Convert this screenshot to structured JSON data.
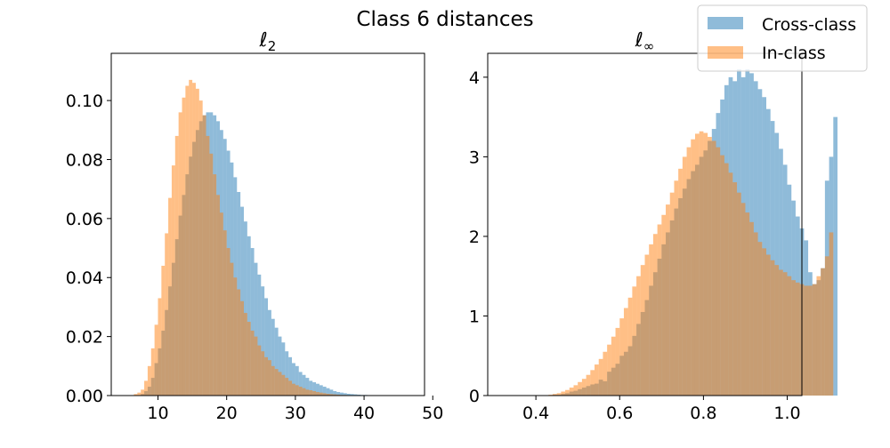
{
  "figure": {
    "suptitle": "Class 6 distances"
  },
  "legend": {
    "placement": "top-right",
    "entries": [
      {
        "label": "Cross-class",
        "color": "#1f77b4",
        "alpha": 0.5
      },
      {
        "label": "In-class",
        "color": "#ff7f0e",
        "alpha": 0.5
      }
    ]
  },
  "chart_data": [
    {
      "type": "histogram",
      "title": "ℓ2",
      "title_main": "ℓ",
      "title_sub": "2",
      "xlabel": "",
      "ylabel": "",
      "xlim": [
        3.2,
        48.8
      ],
      "ylim": [
        0,
        0.116
      ],
      "xticks": [
        10,
        20,
        30,
        40,
        50
      ],
      "xtick_labels": [
        "10",
        "20",
        "30",
        "40",
        "50"
      ],
      "yticks": [
        0.0,
        0.02,
        0.04,
        0.06,
        0.08,
        0.1
      ],
      "ytick_labels": [
        "0.00",
        "0.02",
        "0.04",
        "0.06",
        "0.08",
        "0.10"
      ],
      "bin_width": 0.5,
      "series": [
        {
          "name": "Cross-class",
          "color": "#1f77b4",
          "alpha": 0.5,
          "start": 7.5,
          "values": [
            0.0005,
            0.0015,
            0.003,
            0.006,
            0.011,
            0.016,
            0.022,
            0.029,
            0.037,
            0.045,
            0.053,
            0.061,
            0.068,
            0.075,
            0.081,
            0.086,
            0.09,
            0.093,
            0.095,
            0.096,
            0.096,
            0.095,
            0.093,
            0.09,
            0.087,
            0.083,
            0.079,
            0.074,
            0.069,
            0.064,
            0.059,
            0.054,
            0.05,
            0.045,
            0.041,
            0.037,
            0.033,
            0.029,
            0.026,
            0.023,
            0.02,
            0.018,
            0.015,
            0.013,
            0.011,
            0.01,
            0.008,
            0.007,
            0.006,
            0.005,
            0.0045,
            0.004,
            0.0035,
            0.003,
            0.0025,
            0.002,
            0.0015,
            0.0012,
            0.001,
            0.0008,
            0.0006,
            0.0005,
            0.0004,
            0.0003,
            0.0002,
            0.0002,
            0.0001,
            0.0001
          ]
        },
        {
          "name": "In-class",
          "color": "#ff7f0e",
          "alpha": 0.5,
          "start": 6.5,
          "values": [
            0.0005,
            0.001,
            0.002,
            0.005,
            0.01,
            0.016,
            0.024,
            0.033,
            0.044,
            0.055,
            0.067,
            0.078,
            0.088,
            0.096,
            0.101,
            0.105,
            0.107,
            0.106,
            0.104,
            0.1,
            0.095,
            0.088,
            0.082,
            0.075,
            0.068,
            0.062,
            0.056,
            0.05,
            0.045,
            0.04,
            0.036,
            0.032,
            0.028,
            0.025,
            0.022,
            0.02,
            0.017,
            0.015,
            0.013,
            0.012,
            0.01,
            0.009,
            0.008,
            0.007,
            0.006,
            0.005,
            0.004,
            0.0035,
            0.003,
            0.0025,
            0.002,
            0.0018,
            0.0015,
            0.0012,
            0.001,
            0.0008,
            0.0006,
            0.0005,
            0.0004,
            0.0003,
            0.0002,
            0.0002,
            0.0001,
            0.0001
          ]
        }
      ]
    },
    {
      "type": "histogram",
      "title": "ℓ∞",
      "title_main": "ℓ",
      "title_sub": "∞",
      "xlabel": "",
      "ylabel": "",
      "xlim": [
        0.285,
        1.035
      ],
      "ylim": [
        0,
        4.3
      ],
      "xticks": [
        0.4,
        0.6,
        0.8,
        1.0
      ],
      "xtick_labels": [
        "0.4",
        "0.6",
        "0.8",
        "1.0"
      ],
      "yticks": [
        0,
        1,
        2,
        3,
        4
      ],
      "ytick_labels": [
        "0",
        "1",
        "2",
        "3",
        "4"
      ],
      "bin_width": 0.01,
      "series": [
        {
          "name": "Cross-class",
          "color": "#1f77b4",
          "alpha": 0.5,
          "start": 0.44,
          "values": [
            0.01,
            0.01,
            0.02,
            0.03,
            0.05,
            0.06,
            0.08,
            0.1,
            0.12,
            0.14,
            0.15,
            0.2,
            0.18,
            0.3,
            0.35,
            0.4,
            0.5,
            0.55,
            0.62,
            0.75,
            0.9,
            1.05,
            1.2,
            1.38,
            1.55,
            1.72,
            1.9,
            2.05,
            2.2,
            2.35,
            2.48,
            2.6,
            2.72,
            2.82,
            2.9,
            3.0,
            3.08,
            3.2,
            3.35,
            3.55,
            3.72,
            3.9,
            4.0,
            3.95,
            4.1,
            4.0,
            4.1,
            4.05,
            3.95,
            3.85,
            3.75,
            3.6,
            3.45,
            3.3,
            3.1,
            2.9,
            2.65,
            2.45,
            2.25,
            2.1,
            1.95,
            1.55,
            1.4,
            1.45,
            1.6,
            2.7,
            3.0,
            3.5
          ]
        },
        {
          "name": "In-class",
          "color": "#ff7f0e",
          "alpha": 0.5,
          "start": 0.43,
          "values": [
            0.01,
            0.02,
            0.03,
            0.05,
            0.07,
            0.1,
            0.13,
            0.17,
            0.21,
            0.26,
            0.32,
            0.39,
            0.46,
            0.55,
            0.64,
            0.74,
            0.85,
            0.97,
            1.1,
            1.23,
            1.37,
            1.5,
            1.64,
            1.77,
            1.9,
            2.03,
            2.15,
            2.27,
            2.4,
            2.55,
            2.7,
            2.85,
            3.0,
            3.12,
            3.22,
            3.29,
            3.32,
            3.3,
            3.25,
            3.2,
            3.12,
            3.02,
            2.92,
            2.8,
            2.68,
            2.55,
            2.42,
            2.3,
            2.18,
            2.05,
            1.93,
            1.85,
            1.77,
            1.7,
            1.64,
            1.58,
            1.55,
            1.5,
            1.45,
            1.42,
            1.4,
            1.38,
            1.38,
            1.4,
            1.5,
            1.6,
            1.75,
            2.05
          ]
        }
      ]
    }
  ]
}
